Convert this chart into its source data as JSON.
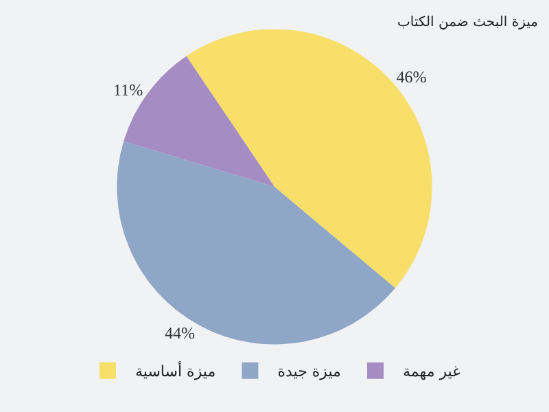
{
  "chart_data": {
    "type": "pie",
    "title": "ميزة البحث ضمن الكتاب",
    "categories": [
      "ميزة أساسية",
      "ميزة جيدة",
      "غير مهمة"
    ],
    "values": [
      46,
      44,
      11
    ],
    "value_labels": [
      "46%",
      "44%",
      "11%"
    ],
    "colors": [
      "#f7df6a",
      "#8fa6c6",
      "#a58cc3"
    ],
    "legend": "bottom"
  }
}
